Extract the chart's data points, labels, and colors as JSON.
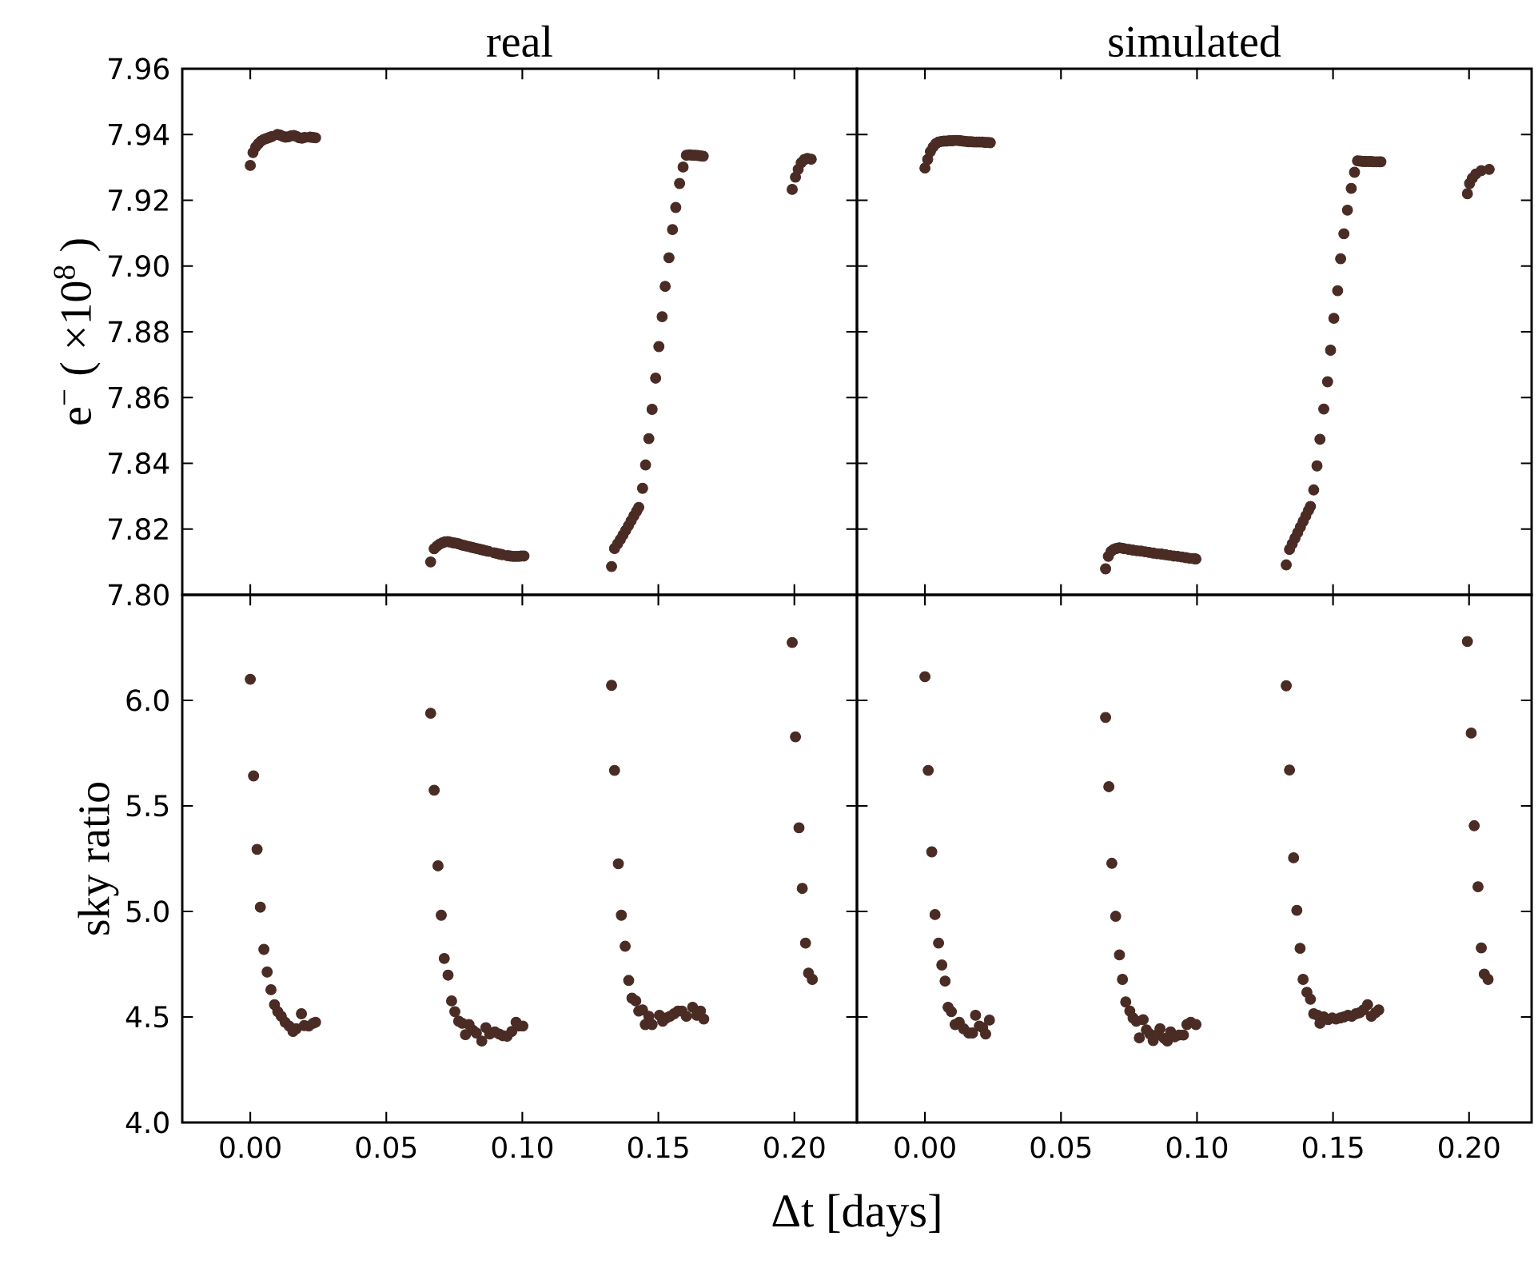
{
  "chart_data": [
    {
      "type": "scatter",
      "title": "real",
      "ylabel": "e$^{−}$ ( ×10$^{8}$ )",
      "color": "#4a2c25",
      "marker": "circle",
      "tick_labels": "y",
      "xlim": [
        -0.025,
        0.223
      ],
      "ylim": [
        7.8,
        7.96
      ],
      "xticks": [
        {
          "value": 0,
          "label": null
        },
        {
          "value": 0.05,
          "label": null
        },
        {
          "value": 0.1,
          "label": null
        },
        {
          "value": 0.15,
          "label": null
        },
        {
          "value": 0.2,
          "label": null
        }
      ],
      "yticks": [
        {
          "value": 7.8,
          "label": "7.80"
        },
        {
          "value": 7.82,
          "label": "7.82"
        },
        {
          "value": 7.84,
          "label": "7.84"
        },
        {
          "value": 7.86,
          "label": "7.86"
        },
        {
          "value": 7.88,
          "label": "7.88"
        },
        {
          "value": 7.9,
          "label": "7.90"
        },
        {
          "value": 7.92,
          "label": "7.92"
        },
        {
          "value": 7.94,
          "label": "7.94"
        },
        {
          "value": 7.96,
          "label": "7.96"
        }
      ],
      "x": [
        0.0,
        0.001,
        0.002,
        0.003,
        0.004,
        0.005,
        0.006,
        0.007,
        0.008,
        0.01,
        0.011,
        0.012,
        0.013,
        0.014,
        0.015,
        0.016,
        0.017,
        0.018,
        0.019,
        0.02,
        0.022,
        0.023,
        0.024,
        0.0663,
        0.0676,
        0.0686,
        0.0696,
        0.0706,
        0.0716,
        0.0726,
        0.0736,
        0.0746,
        0.0756,
        0.0766,
        0.0776,
        0.0786,
        0.0796,
        0.0806,
        0.0816,
        0.0826,
        0.0836,
        0.0846,
        0.0856,
        0.0866,
        0.0876,
        0.0896,
        0.0906,
        0.0916,
        0.0926,
        0.0946,
        0.0956,
        0.0966,
        0.0976,
        0.0986,
        0.0996,
        0.1006,
        0.1328,
        0.1339,
        0.135,
        0.136,
        0.137,
        0.138,
        0.139,
        0.14,
        0.141,
        0.142,
        0.1428,
        0.1442,
        0.1453,
        0.1465,
        0.1477,
        0.149,
        0.1502,
        0.1514,
        0.1525,
        0.1539,
        0.1552,
        0.1564,
        0.1578,
        0.1591,
        0.1603,
        0.1615,
        0.1625,
        0.1635,
        0.1645,
        0.1655,
        0.1665,
        0.1992,
        0.2004,
        0.2014,
        0.2025,
        0.2037,
        0.2048,
        0.2062
      ],
      "values": [
        7.9306,
        7.9345,
        7.9362,
        7.9372,
        7.938,
        7.9385,
        7.9388,
        7.9391,
        7.9394,
        7.94,
        7.9398,
        7.9394,
        7.9392,
        7.9393,
        7.9396,
        7.9397,
        7.9394,
        7.939,
        7.9389,
        7.9391,
        7.9392,
        7.9391,
        7.939,
        7.81,
        7.814,
        7.8148,
        7.8154,
        7.8158,
        7.8161,
        7.8162,
        7.816,
        7.8158,
        7.8157,
        7.8155,
        7.8152,
        7.815,
        7.8148,
        7.8146,
        7.8144,
        7.8142,
        7.814,
        7.8138,
        7.8136,
        7.8134,
        7.8132,
        7.8128,
        7.8126,
        7.8124,
        7.8122,
        7.8119,
        7.8118,
        7.8117,
        7.8117,
        7.8117,
        7.8118,
        7.8118,
        7.8086,
        7.8141,
        7.8155,
        7.8168,
        7.8182,
        7.8196,
        7.821,
        7.8225,
        7.824,
        7.8254,
        7.8266,
        7.8324,
        7.8395,
        7.8475,
        7.8564,
        7.8659,
        7.8755,
        7.8846,
        7.8938,
        7.9025,
        7.9111,
        7.9178,
        7.9251,
        7.9301,
        7.9337,
        7.9338,
        7.9337,
        7.9337,
        7.9336,
        7.9335,
        7.9334,
        7.9233,
        7.927,
        7.9294,
        7.9314,
        7.9324,
        7.9327,
        7.9325
      ]
    },
    {
      "type": "scatter",
      "title": "simulated",
      "color": "#4a2c25",
      "marker": "circle",
      "tick_labels": false,
      "xlim": [
        -0.025,
        0.223
      ],
      "ylim": [
        7.8,
        7.96
      ],
      "xticks": [
        {
          "value": 0,
          "label": null
        },
        {
          "value": 0.05,
          "label": null
        },
        {
          "value": 0.1,
          "label": null
        },
        {
          "value": 0.15,
          "label": null
        },
        {
          "value": 0.2,
          "label": null
        }
      ],
      "yticks": [
        {
          "value": 7.8,
          "label": null
        },
        {
          "value": 7.82,
          "label": null
        },
        {
          "value": 7.84,
          "label": null
        },
        {
          "value": 7.86,
          "label": null
        },
        {
          "value": 7.88,
          "label": null
        },
        {
          "value": 7.9,
          "label": null
        },
        {
          "value": 7.92,
          "label": null
        },
        {
          "value": 7.94,
          "label": null
        },
        {
          "value": 7.96,
          "label": null
        }
      ],
      "x": [
        0.0,
        0.001,
        0.002,
        0.003,
        0.004,
        0.005,
        0.006,
        0.007,
        0.008,
        0.009,
        0.01,
        0.011,
        0.012,
        0.013,
        0.014,
        0.015,
        0.016,
        0.017,
        0.018,
        0.019,
        0.02,
        0.021,
        0.022,
        0.023,
        0.024,
        0.0664,
        0.0674,
        0.0684,
        0.0694,
        0.0704,
        0.0714,
        0.0724,
        0.0734,
        0.0749,
        0.0764,
        0.0779,
        0.0794,
        0.0809,
        0.0824,
        0.0839,
        0.0854,
        0.0869,
        0.0884,
        0.0899,
        0.0914,
        0.0929,
        0.0944,
        0.0959,
        0.0974,
        0.0989,
        0.0996,
        0.1328,
        0.134,
        0.135,
        0.136,
        0.137,
        0.138,
        0.139,
        0.14,
        0.141,
        0.1417,
        0.1429,
        0.1441,
        0.1452,
        0.1466,
        0.148,
        0.1491,
        0.1503,
        0.1517,
        0.1528,
        0.154,
        0.1553,
        0.1567,
        0.1579,
        0.159,
        0.16,
        0.161,
        0.162,
        0.163,
        0.164,
        0.165,
        0.166,
        0.167,
        0.1676,
        0.1994,
        0.2002,
        0.2012,
        0.2025,
        0.2045,
        0.2074
      ],
      "values": [
        7.9298,
        7.9324,
        7.9348,
        7.9362,
        7.9372,
        7.9377,
        7.9379,
        7.938,
        7.938,
        7.9381,
        7.9381,
        7.9382,
        7.9382,
        7.9381,
        7.938,
        7.9379,
        7.9378,
        7.9378,
        7.9377,
        7.9377,
        7.9377,
        7.9377,
        7.9376,
        7.9376,
        7.9375,
        7.8079,
        7.8117,
        7.8132,
        7.8138,
        7.8141,
        7.8143,
        7.8142,
        7.814,
        7.8138,
        7.8136,
        7.8134,
        7.8133,
        7.8131,
        7.8129,
        7.8127,
        7.8125,
        7.8124,
        7.8122,
        7.812,
        7.8118,
        7.8117,
        7.8115,
        7.8113,
        7.8111,
        7.811,
        7.8109,
        7.8091,
        7.8138,
        7.8155,
        7.8172,
        7.8189,
        7.8206,
        7.8223,
        7.824,
        7.8257,
        7.8269,
        7.8319,
        7.8392,
        7.8473,
        7.8565,
        7.8648,
        7.8744,
        7.8841,
        7.8925,
        7.9022,
        7.9098,
        7.917,
        7.9236,
        7.9285,
        7.932,
        7.9319,
        7.9318,
        7.9318,
        7.9318,
        7.9318,
        7.9317,
        7.9317,
        7.9317,
        7.9317,
        7.922,
        7.9251,
        7.9267,
        7.928,
        7.929,
        7.9294
      ]
    },
    {
      "type": "scatter",
      "ylabel": "sky ratio",
      "xlabel": "Δt [days]",
      "color": "#4a2c25",
      "marker": "circle",
      "xlim": [
        -0.025,
        0.223
      ],
      "ylim": [
        4.0,
        6.5
      ],
      "xticks": [
        {
          "value": 0,
          "label": "0.00"
        },
        {
          "value": 0.05,
          "label": "0.05"
        },
        {
          "value": 0.1,
          "label": "0.10"
        },
        {
          "value": 0.15,
          "label": "0.15"
        },
        {
          "value": 0.2,
          "label": "0.20"
        }
      ],
      "yticks": [
        {
          "value": 4.0,
          "label": "4.0"
        },
        {
          "value": 4.5,
          "label": "4.5"
        },
        {
          "value": 5.0,
          "label": "5.0"
        },
        {
          "value": 5.5,
          "label": "5.5"
        },
        {
          "value": 6.0,
          "label": "6.0"
        },
        {
          "value": 6.5,
          "label": null
        }
      ],
      "x": [
        0,
        0.0012,
        0.0025,
        0.0037,
        0.005,
        0.0062,
        0.0076,
        0.0089,
        0.0101,
        0.0114,
        0.0128,
        0.0143,
        0.0157,
        0.0169,
        0.0188,
        0.0198,
        0.0215,
        0.0231,
        0.024,
        0.0663,
        0.0676,
        0.069,
        0.0702,
        0.0713,
        0.0727,
        0.074,
        0.0752,
        0.0766,
        0.0779,
        0.0791,
        0.0804,
        0.0818,
        0.0831,
        0.0851,
        0.0866,
        0.088,
        0.0899,
        0.0915,
        0.0928,
        0.0944,
        0.0961,
        0.0977,
        0.0986,
        0.1002,
        0.1328,
        0.1339,
        0.1353,
        0.1364,
        0.1378,
        0.1391,
        0.1403,
        0.1417,
        0.1428,
        0.1442,
        0.1452,
        0.1465,
        0.1477,
        0.1504,
        0.1516,
        0.1529,
        0.1543,
        0.1558,
        0.1572,
        0.1587,
        0.1603,
        0.1626,
        0.1641,
        0.1655,
        0.1667,
        0.1992,
        0.2004,
        0.2017,
        0.2029,
        0.2041,
        0.2052,
        0.2066
      ],
      "values": [
        6.1,
        5.642,
        5.294,
        5.02,
        4.82,
        4.713,
        4.629,
        4.558,
        4.525,
        4.503,
        4.475,
        4.457,
        4.431,
        4.444,
        4.515,
        4.459,
        4.457,
        4.47,
        4.475,
        5.939,
        5.574,
        5.216,
        4.982,
        4.777,
        4.698,
        4.576,
        4.525,
        4.48,
        4.47,
        4.416,
        4.464,
        4.437,
        4.424,
        4.386,
        4.449,
        4.419,
        4.429,
        4.419,
        4.411,
        4.409,
        4.431,
        4.475,
        4.457,
        4.457,
        6.071,
        5.668,
        5.226,
        4.982,
        4.835,
        4.673,
        4.589,
        4.576,
        4.528,
        4.533,
        4.464,
        4.503,
        4.464,
        4.508,
        4.48,
        4.495,
        4.503,
        4.515,
        4.528,
        4.528,
        4.503,
        4.546,
        4.508,
        4.528,
        4.49,
        6.274,
        5.827,
        5.396,
        5.109,
        4.85,
        4.708,
        4.678
      ]
    },
    {
      "type": "scatter",
      "color": "#4a2c25",
      "marker": "circle",
      "tick_labels": "x",
      "xlim": [
        -0.025,
        0.223
      ],
      "ylim": [
        4.0,
        6.5
      ],
      "xticks": [
        {
          "value": 0,
          "label": "0.00"
        },
        {
          "value": 0.05,
          "label": "0.05"
        },
        {
          "value": 0.1,
          "label": "0.10"
        },
        {
          "value": 0.15,
          "label": "0.15"
        },
        {
          "value": 0.2,
          "label": "0.20"
        }
      ],
      "yticks": [
        {
          "value": 4.0,
          "label": null
        },
        {
          "value": 4.5,
          "label": null
        },
        {
          "value": 5.0,
          "label": null
        },
        {
          "value": 5.5,
          "label": null
        },
        {
          "value": 6.0,
          "label": null
        },
        {
          "value": 6.5,
          "label": null
        }
      ],
      "x": [
        0,
        0.0012,
        0.0025,
        0.0037,
        0.005,
        0.0062,
        0.0074,
        0.0085,
        0.0097,
        0.0111,
        0.0126,
        0.0142,
        0.0161,
        0.0175,
        0.0186,
        0.02,
        0.0212,
        0.0223,
        0.0237,
        0.0664,
        0.0676,
        0.0687,
        0.0701,
        0.0715,
        0.0726,
        0.0738,
        0.0753,
        0.0765,
        0.0777,
        0.0788,
        0.0802,
        0.0814,
        0.0827,
        0.0839,
        0.0852,
        0.0864,
        0.088,
        0.0891,
        0.0903,
        0.0918,
        0.0934,
        0.095,
        0.0963,
        0.0977,
        0.0996,
        0.1328,
        0.134,
        0.1355,
        0.1367,
        0.1379,
        0.139,
        0.1404,
        0.1417,
        0.1429,
        0.1443,
        0.1452,
        0.1466,
        0.1482,
        0.1497,
        0.1511,
        0.1526,
        0.154,
        0.1555,
        0.1569,
        0.1584,
        0.1598,
        0.1612,
        0.1627,
        0.1641,
        0.1656,
        0.1668,
        0.1994,
        0.2008,
        0.2019,
        0.2033,
        0.2045,
        0.2056,
        0.207
      ],
      "values": [
        6.112,
        5.668,
        5.282,
        4.985,
        4.85,
        4.746,
        4.67,
        4.546,
        4.525,
        4.464,
        4.475,
        4.444,
        4.424,
        4.424,
        4.508,
        4.457,
        4.449,
        4.419,
        4.485,
        5.919,
        5.591,
        5.228,
        4.977,
        4.794,
        4.678,
        4.571,
        4.528,
        4.495,
        4.48,
        4.401,
        4.487,
        4.439,
        4.419,
        4.388,
        4.414,
        4.444,
        4.398,
        4.386,
        4.429,
        4.406,
        4.414,
        4.414,
        4.464,
        4.475,
        4.464,
        6.069,
        5.67,
        5.254,
        5.005,
        4.825,
        4.678,
        4.617,
        4.584,
        4.515,
        4.508,
        4.47,
        4.5,
        4.487,
        4.495,
        4.49,
        4.495,
        4.5,
        4.508,
        4.503,
        4.515,
        4.52,
        4.533,
        4.558,
        4.503,
        4.52,
        4.533,
        6.279,
        5.845,
        5.406,
        5.117,
        4.827,
        4.703,
        4.678
      ]
    }
  ]
}
